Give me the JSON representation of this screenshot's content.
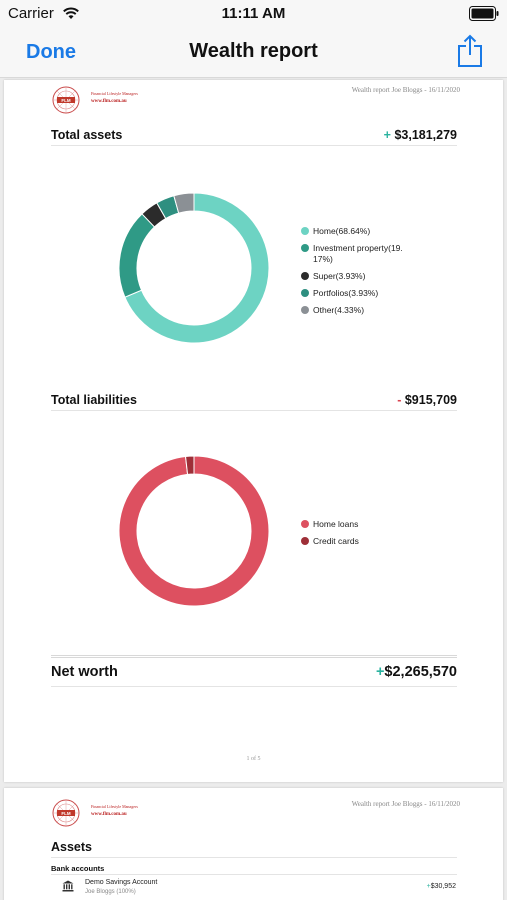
{
  "status_bar": {
    "carrier": "Carrier",
    "time": "11:11 AM"
  },
  "nav": {
    "done_label": "Done",
    "title": "Wealth report"
  },
  "logo": {
    "small_text": "Financial Lifestyle Managers",
    "url": "www.flm.com.au"
  },
  "report_header": "Wealth report Joe Bloggs - 16/11/2020",
  "total_assets": {
    "label": "Total assets",
    "sign": "+",
    "value": "$3,181,279"
  },
  "total_liabilities": {
    "label": "Total liabilities",
    "sign": "-",
    "value": "$915,709"
  },
  "net_worth": {
    "label": "Net worth",
    "sign": "+",
    "value": "$2,265,570"
  },
  "page_number": "1 of 5",
  "page2": {
    "assets_title": "Assets",
    "bank_heading": "Bank accounts",
    "account_name": "Demo Savings Account",
    "account_owner": "Joe Bloggs (100%)",
    "account_value": "$30,952",
    "account_sign": "+"
  },
  "chart_data": [
    {
      "type": "pie",
      "title": "",
      "categories": [
        "Home",
        "Investment property",
        "Super",
        "Portfolios",
        "Other"
      ],
      "values": [
        68.64,
        19.17,
        3.93,
        3.93,
        4.33
      ],
      "colors": [
        "#6dd3c3",
        "#2f9a86",
        "#2b2b2b",
        "#2e8f80",
        "#8b9095"
      ],
      "legend_labels": [
        "Home(68.64%)",
        "Investment property(19. 17%)",
        "Super(3.93%)",
        "Portfolios(3.93%)",
        "Other(4.33%)"
      ],
      "legend_position": "right"
    },
    {
      "type": "pie",
      "title": "",
      "categories": [
        "Home loans",
        "Credit cards"
      ],
      "values": [
        98.2,
        1.8
      ],
      "colors": [
        "#dd5060",
        "#9e2f38"
      ],
      "legend_labels": [
        "Home loans",
        "Credit cards"
      ],
      "legend_position": "right"
    }
  ]
}
